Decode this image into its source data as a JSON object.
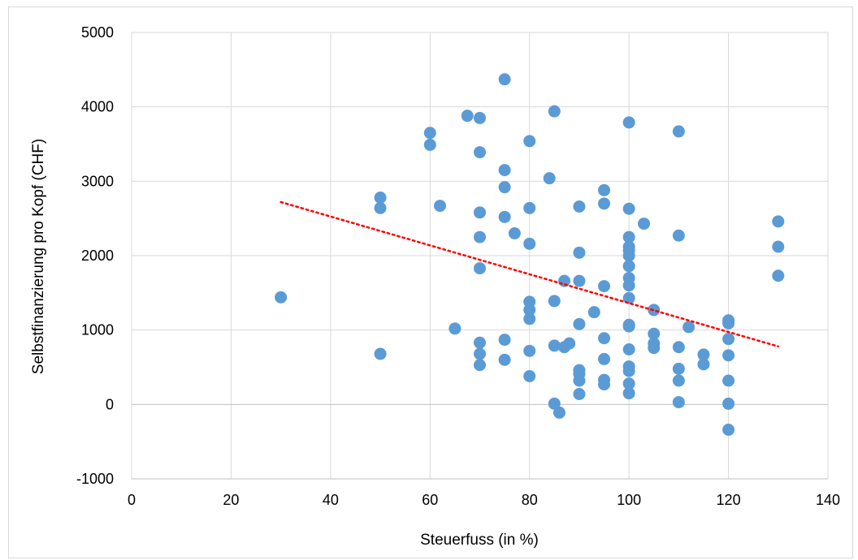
{
  "chart_data": {
    "type": "scatter",
    "xlabel": "Steuerfuss (in %)",
    "ylabel": "Selbstfinanzierung  pro Kopf (CHF)",
    "xlim": [
      0,
      140
    ],
    "ylim": [
      -1000,
      5000
    ],
    "x_ticks": [
      0,
      20,
      40,
      60,
      80,
      100,
      120,
      140
    ],
    "y_ticks": [
      -1000,
      0,
      1000,
      2000,
      3000,
      4000,
      5000
    ],
    "grid": true,
    "legend": "none",
    "colors": {
      "points": "#5b9bd5",
      "trendline": "#ff0000",
      "grid": "#d9d9d9"
    },
    "trendline": {
      "style": "dotted",
      "linear": true,
      "from": [
        30,
        2720
      ],
      "to": [
        130,
        780
      ]
    },
    "points": [
      [
        30,
        1440
      ],
      [
        50,
        2780
      ],
      [
        50,
        2640
      ],
      [
        50,
        680
      ],
      [
        60,
        3650
      ],
      [
        60,
        3490
      ],
      [
        62,
        2670
      ],
      [
        65,
        1020
      ],
      [
        67.5,
        3880
      ],
      [
        70,
        3850
      ],
      [
        70,
        3390
      ],
      [
        70,
        2580
      ],
      [
        70,
        2250
      ],
      [
        70,
        1830
      ],
      [
        70,
        830
      ],
      [
        70,
        680
      ],
      [
        70,
        530
      ],
      [
        75,
        4370
      ],
      [
        75,
        3150
      ],
      [
        75,
        2920
      ],
      [
        75,
        2520
      ],
      [
        75,
        870
      ],
      [
        75,
        600
      ],
      [
        77,
        2300
      ],
      [
        80,
        3540
      ],
      [
        80,
        2640
      ],
      [
        80,
        2160
      ],
      [
        80,
        1380
      ],
      [
        80,
        1270
      ],
      [
        80,
        1150
      ],
      [
        80,
        720
      ],
      [
        80,
        380
      ],
      [
        84,
        3040
      ],
      [
        85,
        3940
      ],
      [
        85,
        1390
      ],
      [
        85,
        790
      ],
      [
        85,
        10
      ],
      [
        86,
        -110
      ],
      [
        87,
        1660
      ],
      [
        87,
        770
      ],
      [
        88,
        820
      ],
      [
        90,
        2660
      ],
      [
        90,
        2040
      ],
      [
        90,
        1660
      ],
      [
        90,
        1080
      ],
      [
        90,
        460
      ],
      [
        90,
        410
      ],
      [
        90,
        320
      ],
      [
        90,
        140
      ],
      [
        93,
        1240
      ],
      [
        95,
        2880
      ],
      [
        95,
        2700
      ],
      [
        95,
        1590
      ],
      [
        95,
        890
      ],
      [
        95,
        610
      ],
      [
        95,
        330
      ],
      [
        95,
        270
      ],
      [
        100,
        3790
      ],
      [
        100,
        2630
      ],
      [
        100,
        2250
      ],
      [
        100,
        2120
      ],
      [
        100,
        2070
      ],
      [
        100,
        2000
      ],
      [
        100,
        1860
      ],
      [
        100,
        1700
      ],
      [
        100,
        1600
      ],
      [
        100,
        1430
      ],
      [
        100,
        1070
      ],
      [
        100,
        1050
      ],
      [
        100,
        740
      ],
      [
        100,
        510
      ],
      [
        100,
        450
      ],
      [
        100,
        280
      ],
      [
        100,
        150
      ],
      [
        103,
        2430
      ],
      [
        105,
        1270
      ],
      [
        105,
        950
      ],
      [
        105,
        820
      ],
      [
        105,
        760
      ],
      [
        110,
        3670
      ],
      [
        110,
        2270
      ],
      [
        110,
        770
      ],
      [
        110,
        480
      ],
      [
        110,
        320
      ],
      [
        110,
        30
      ],
      [
        112,
        1040
      ],
      [
        115,
        670
      ],
      [
        115,
        540
      ],
      [
        120,
        1130
      ],
      [
        120,
        1090
      ],
      [
        120,
        880
      ],
      [
        120,
        660
      ],
      [
        120,
        320
      ],
      [
        120,
        10
      ],
      [
        120,
        -340
      ],
      [
        130,
        2460
      ],
      [
        130,
        2120
      ],
      [
        130,
        1730
      ]
    ]
  }
}
